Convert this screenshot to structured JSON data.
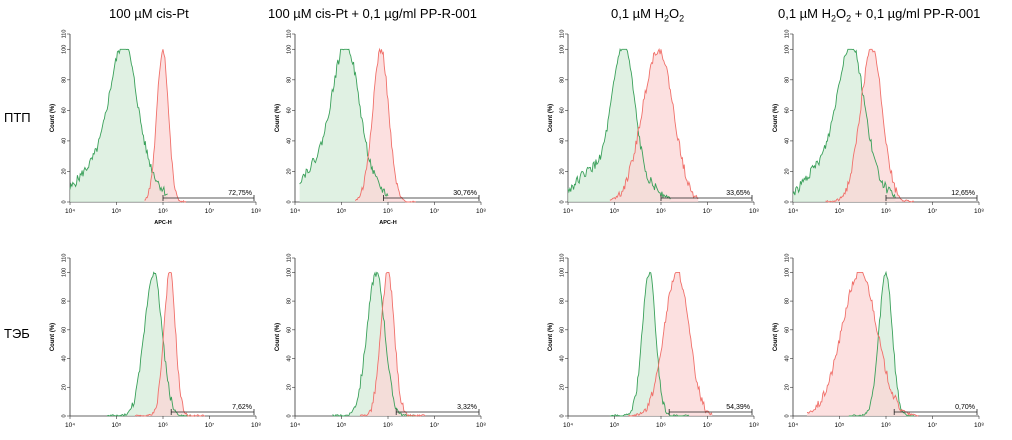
{
  "columns": [
    {
      "title": "100 µM cis-Pt"
    },
    {
      "title": "100 µM cis-Pt + 0,1 µg/ml PP-R-001"
    },
    {
      "title_pre": "0,1 µM H",
      "title_sub1": "2",
      "title_mid": "O",
      "title_sub2": "2",
      "title_post": ""
    },
    {
      "title_pre": "0,1 µM H",
      "title_sub1": "2",
      "title_mid": "O",
      "title_sub2": "2",
      "title_post": " + 0,1 µg/ml PP-R-001"
    }
  ],
  "rows": [
    {
      "label": "ПТП"
    },
    {
      "label": "ТЭБ"
    }
  ],
  "colors": {
    "control_line": "#3aa05a",
    "control_fill": "#d6ecd9",
    "treated_line": "#f0706a",
    "treated_fill": "#fbd6d6",
    "overlap_fill": "#ddd8c4"
  },
  "chart_data": [
    {
      "type": "histogram",
      "row": "ПТП",
      "column": "100 µM cis-Pt",
      "ylabel": "Count (%)",
      "xlabel": "APC-H",
      "xscale": "log",
      "xlim": [
        10000,
        100000000
      ],
      "ylim": [
        0,
        110
      ],
      "yticks": [
        "0",
        "20",
        "40",
        "60",
        "80",
        "100",
        "110"
      ],
      "xticks": [
        "10⁴",
        "10⁵",
        "10⁶",
        "10⁷",
        "10⁸"
      ],
      "gate_label": "72,75%",
      "gate_range": [
        1000000,
        100000000
      ],
      "series": [
        {
          "name": "control",
          "peak_log10": 5.15,
          "width": 0.3,
          "left_tail": 0.2,
          "right_tail": 0.15,
          "start": 4.0,
          "end": 6.1
        },
        {
          "name": "treated",
          "peak_log10": 6.0,
          "width": 0.13,
          "left_tail": 0.0,
          "right_tail": 0.0,
          "start": 5.6,
          "end": 6.5
        }
      ]
    },
    {
      "type": "histogram",
      "row": "ПТП",
      "column": "100 µM cis-Pt + 0,1 µg/ml PP-R-001",
      "ylabel": "Count (%)",
      "xlabel": "APC-H",
      "xscale": "log",
      "xlim": [
        10000,
        100000000
      ],
      "ylim": [
        0,
        110
      ],
      "yticks": [
        "0",
        "20",
        "40",
        "60",
        "80",
        "100",
        "110"
      ],
      "xticks": [
        "10⁴",
        "10⁵",
        "10⁶",
        "10⁷",
        "10⁸"
      ],
      "gate_label": "30,76%",
      "gate_range": [
        800000,
        100000000
      ],
      "series": [
        {
          "name": "control",
          "peak_log10": 5.1,
          "width": 0.3,
          "left_tail": 0.2,
          "right_tail": 0.1,
          "start": 4.1,
          "end": 6.0
        },
        {
          "name": "treated",
          "peak_log10": 5.85,
          "width": 0.18,
          "left_tail": 0.0,
          "right_tail": 0.0,
          "start": 5.3,
          "end": 6.6
        }
      ]
    },
    {
      "type": "histogram",
      "row": "ПТП",
      "column": "0,1 µM H2O2",
      "ylabel": "Count (%)",
      "xlabel": "",
      "xscale": "log",
      "xlim": [
        10000,
        100000000
      ],
      "ylim": [
        0,
        110
      ],
      "yticks": [
        "0",
        "20",
        "40",
        "60",
        "80",
        "100",
        "110"
      ],
      "xticks": [
        "10⁴",
        "10⁵",
        "10⁶",
        "10⁷",
        "10⁸"
      ],
      "gate_label": "33,65%",
      "gate_range": [
        1000000,
        100000000
      ],
      "series": [
        {
          "name": "control",
          "peak_log10": 5.2,
          "width": 0.25,
          "left_tail": 0.2,
          "right_tail": 0.1,
          "start": 4.0,
          "end": 6.2
        },
        {
          "name": "treated",
          "peak_log10": 5.95,
          "width": 0.35,
          "left_tail": 0.0,
          "right_tail": 0.0,
          "start": 4.9,
          "end": 6.8
        }
      ]
    },
    {
      "type": "histogram",
      "row": "ПТП",
      "column": "0,1 µM H2O2 + 0,1 µg/ml PP-R-001",
      "ylabel": "Count (%)",
      "xlabel": "",
      "xscale": "log",
      "xlim": [
        10000,
        100000000
      ],
      "ylim": [
        0,
        110
      ],
      "yticks": [
        "0",
        "20",
        "40",
        "60",
        "80",
        "100",
        "110"
      ],
      "xticks": [
        "10⁴",
        "10⁵",
        "10⁶",
        "10⁷",
        "10⁸"
      ],
      "gate_label": "12,65%",
      "gate_range": [
        1000000,
        100000000
      ],
      "series": [
        {
          "name": "control",
          "peak_log10": 5.25,
          "width": 0.3,
          "left_tail": 0.2,
          "right_tail": 0.1,
          "start": 4.0,
          "end": 6.2
        },
        {
          "name": "treated",
          "peak_log10": 5.7,
          "width": 0.25,
          "left_tail": 0.0,
          "right_tail": 0.0,
          "start": 4.7,
          "end": 6.6
        }
      ]
    },
    {
      "type": "histogram",
      "row": "ТЭБ",
      "column": "100 µM cis-Pt",
      "ylabel": "Count (%)",
      "xlabel": "",
      "xscale": "log",
      "xlim": [
        10000,
        100000000
      ],
      "ylim": [
        0,
        110
      ],
      "yticks": [
        "0",
        "20",
        "40",
        "60",
        "80",
        "100",
        "110"
      ],
      "xticks": [
        "10⁴",
        "10⁵",
        "10⁶",
        "10⁷",
        "10⁸"
      ],
      "gate_label": "7,62%",
      "gate_range": [
        1500000,
        100000000
      ],
      "series": [
        {
          "name": "control",
          "peak_log10": 5.8,
          "width": 0.2,
          "left_tail": 0.0,
          "right_tail": 0.0,
          "start": 4.8,
          "end": 6.6
        },
        {
          "name": "treated",
          "peak_log10": 6.15,
          "width": 0.13,
          "left_tail": 0.0,
          "right_tail": 0.0,
          "start": 5.4,
          "end": 6.9
        }
      ]
    },
    {
      "type": "histogram",
      "row": "ТЭБ",
      "column": "100 µM cis-Pt + 0,1 µg/ml PP-R-001",
      "ylabel": "Count (%)",
      "xlabel": "",
      "xscale": "log",
      "xlim": [
        10000,
        100000000
      ],
      "ylim": [
        0,
        110
      ],
      "yticks": [
        "0",
        "20",
        "40",
        "60",
        "80",
        "100",
        "110"
      ],
      "xticks": [
        "10⁴",
        "10⁵",
        "10⁶",
        "10⁷",
        "10⁸"
      ],
      "gate_label": "3,32%",
      "gate_range": [
        1500000,
        100000000
      ],
      "series": [
        {
          "name": "control",
          "peak_log10": 5.75,
          "width": 0.2,
          "left_tail": 0.0,
          "right_tail": 0.0,
          "start": 4.8,
          "end": 6.6
        },
        {
          "name": "treated",
          "peak_log10": 6.0,
          "width": 0.15,
          "left_tail": 0.0,
          "right_tail": 0.0,
          "start": 5.4,
          "end": 6.8
        }
      ]
    },
    {
      "type": "histogram",
      "row": "ТЭБ",
      "column": "0,1 µM H2O2",
      "ylabel": "Count (%)",
      "xlabel": "",
      "xscale": "log",
      "xlim": [
        10000,
        100000000
      ],
      "ylim": [
        0,
        110
      ],
      "yticks": [
        "0",
        "20",
        "40",
        "60",
        "80",
        "100",
        "110"
      ],
      "xticks": [
        "10⁴",
        "10⁵",
        "10⁶",
        "10⁷",
        "10⁸"
      ],
      "gate_label": "54,39%",
      "gate_range": [
        1500000,
        100000000
      ],
      "series": [
        {
          "name": "control",
          "peak_log10": 5.75,
          "width": 0.15,
          "left_tail": 0.0,
          "right_tail": 0.0,
          "start": 4.9,
          "end": 6.6
        },
        {
          "name": "treated",
          "peak_log10": 6.35,
          "width": 0.28,
          "left_tail": 0.0,
          "right_tail": 0.0,
          "start": 5.3,
          "end": 7.1
        }
      ]
    },
    {
      "type": "histogram",
      "row": "ТЭБ",
      "column": "0,1 µM H2O2 + 0,1 µg/ml PP-R-001",
      "ylabel": "Count (%)",
      "xlabel": "",
      "xscale": "log",
      "xlim": [
        10000,
        100000000
      ],
      "ylim": [
        0,
        110
      ],
      "yticks": [
        "0",
        "20",
        "40",
        "60",
        "80",
        "100",
        "110"
      ],
      "xticks": [
        "10⁴",
        "10⁵",
        "10⁶",
        "10⁷",
        "10⁸"
      ],
      "gate_label": "0,70%",
      "gate_range": [
        1500000,
        100000000
      ],
      "series": [
        {
          "name": "control",
          "peak_log10": 6.0,
          "width": 0.15,
          "left_tail": 0.0,
          "right_tail": 0.0,
          "start": 5.2,
          "end": 6.6
        },
        {
          "name": "treated",
          "peak_log10": 5.45,
          "width": 0.4,
          "left_tail": 0.0,
          "right_tail": 0.0,
          "start": 4.3,
          "end": 6.7
        }
      ]
    }
  ]
}
